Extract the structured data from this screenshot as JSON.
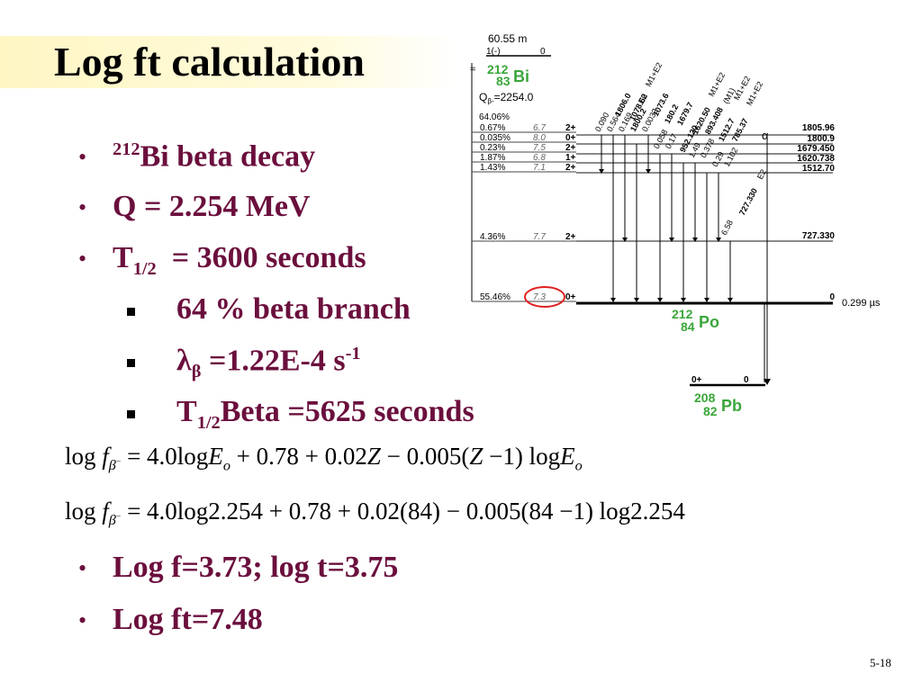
{
  "slide": {
    "title": "Log ft calculation",
    "page_number": "5-18"
  },
  "bullets": {
    "b1_sup": "212",
    "b1_text": "Bi beta decay",
    "b2": "Q = 2.254 MeV",
    "b3_main": "T",
    "b3_sub": "1/2",
    "b3_rest": "  = 3600 seconds",
    "s1": "64 % beta branch",
    "s2_lambda": "λ",
    "s2_beta": "β",
    "s2_rest": " =1.22E-4 s",
    "s2_sup": "-1",
    "s3_main": "T",
    "s3_sub": "1/2",
    "s3_rest": "Beta =5625 seconds",
    "b4": "Log f=3.73; log t=3.75",
    "b5": "Log ft=7.48"
  },
  "equations": {
    "eq1_log": "log ",
    "eq1_f": "f",
    "eq1_sub": "β",
    "eq1_sup": "−",
    "eq1_rhs_a": " = 4.0log",
    "eq1_E": "E",
    "eq1_o": "o",
    "eq1_rhs_b": " + 0.78 + 0.02",
    "eq1_Z": "Z",
    "eq1_rhs_c": " − 0.005(",
    "eq1_Z2": "Z",
    "eq1_rhs_d": " −1) log",
    "eq1_E2": "E",
    "eq1_o2": "o",
    "eq2_log": "log ",
    "eq2_f": "f",
    "eq2_sub": "β",
    "eq2_sup": "−",
    "eq2_rhs": " = 4.0log2.254 + 0.78 + 0.02(84) − 0.005(84 −1) log2.254"
  },
  "diagram": {
    "half_life_bi": "60.55 m",
    "spin_bi": "1(-)",
    "zero_bi": "0",
    "bi_A": "212",
    "bi_Z": "83",
    "bi_sym": "Bi",
    "q_label": "Q",
    "q_sub": "β-",
    "q_val": "=2254.0",
    "branch_total": "64.06%",
    "branches": [
      {
        "pct": "0.67%",
        "logft": "6.7",
        "spin": "2+",
        "energy": "1805.96"
      },
      {
        "pct": "0.035%",
        "logft": "8.0",
        "spin": "0+",
        "energy": "1800.9"
      },
      {
        "pct": "0.23%",
        "logft": "7.5",
        "spin": "2+",
        "energy": "1679.450"
      },
      {
        "pct": "1.87%",
        "logft": "6.8",
        "spin": "1+",
        "energy": "1620.738"
      },
      {
        "pct": "1.43%",
        "logft": "7.1",
        "spin": "2+",
        "energy": "1512.70"
      },
      {
        "pct": "4.36%",
        "logft": "7.7",
        "spin": "2+",
        "energy": "727.330"
      },
      {
        "pct": "55.46%",
        "logft": "7.3",
        "spin": "0+",
        "energy": "0"
      }
    ],
    "gs_halflife": "0.299 µs",
    "alpha": "α",
    "gamma_labels": [
      "0.090",
      "0.564",
      "1806.0",
      "1078.62",
      "M1+E2",
      "0.169",
      "1800.2",
      "E0",
      "0.0032",
      "1073.6",
      "0.058",
      "180.2",
      "0.17",
      "1679.7",
      "952.120",
      "M1+E2",
      "1.49",
      "1620.50",
      "(M1)",
      "0.378",
      "893.408",
      "M1+E2",
      "0.29",
      "1512.7",
      "1.102",
      "785.37",
      "M1+E2",
      "6.58",
      "727.330",
      "E2"
    ],
    "po_A": "212",
    "po_Z": "84",
    "po_sym": "Po",
    "pb_spin": "0+",
    "pb_zero": "0",
    "pb_A": "208",
    "pb_Z": "82",
    "pb_sym": "Pb",
    "accent_green": "#3aa63a",
    "circle_red": "#e02020"
  }
}
